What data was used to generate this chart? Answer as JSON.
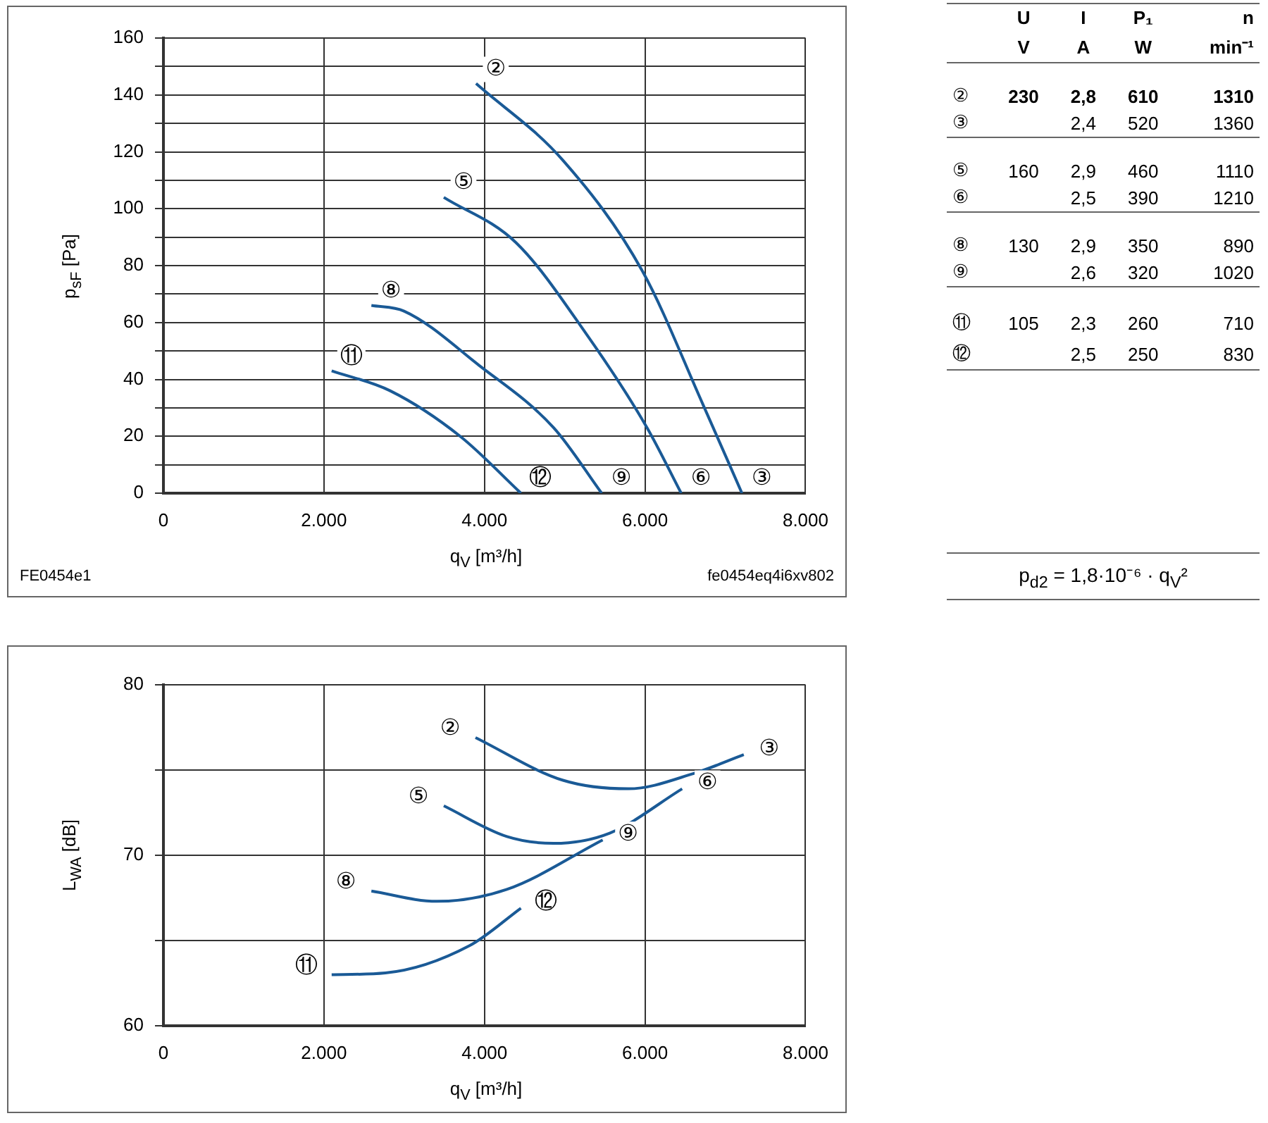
{
  "chart_data": [
    {
      "type": "line",
      "xlabel": "q$_{V}$ [m³/h]",
      "ylabel": "p$_{sF}$ [Pa]",
      "xlim": [
        0,
        8000
      ],
      "ylim": [
        0,
        160
      ],
      "xticks": [
        0,
        {
          "value": 2000,
          "label": "2.000"
        },
        {
          "value": 4000,
          "label": "4.000"
        },
        {
          "value": 6000,
          "label": "6.000"
        },
        {
          "value": 8000,
          "label": "8.000"
        }
      ],
      "yticks": [
        0,
        {
          "value": 10,
          "label": null
        },
        20,
        {
          "value": 30,
          "label": null
        },
        40,
        {
          "value": 50,
          "label": null
        },
        60,
        {
          "value": 70,
          "label": null
        },
        80,
        {
          "value": 90,
          "label": null
        },
        100,
        {
          "value": 110,
          "label": null
        },
        120,
        {
          "value": 130,
          "label": null
        },
        140,
        {
          "value": 150,
          "label": null
        },
        160
      ],
      "grid": true,
      "legend": false,
      "marker": "none",
      "line_style": "solid",
      "series": [
        {
          "color": "#1a5a96",
          "x": [
            3895,
            4978,
            5969,
            6725,
            7208
          ],
          "values": [
            144,
            117,
            78,
            31,
            0
          ]
        },
        {
          "color": "#1a5a96",
          "x": [
            3493,
            4396,
            5268,
            6026,
            6451
          ],
          "values": [
            104,
            88,
            56,
            23,
            0
          ]
        },
        {
          "color": "#1a5a96",
          "x": [
            2591,
            2998,
            3930,
            4862,
            5460
          ],
          "values": [
            66,
            64,
            45,
            23,
            0
          ]
        },
        {
          "color": "#1a5a96",
          "x": [
            2096,
            2824,
            3697,
            4454
          ],
          "values": [
            43,
            36,
            20,
            0
          ]
        }
      ],
      "annotations": [
        {
          "text": "②",
          "x": 3895,
          "y": 144
        },
        {
          "text": "③",
          "x": 7208,
          "y": 0
        },
        {
          "text": "⑤",
          "x": 3493,
          "y": 104
        },
        {
          "text": "⑥",
          "x": 6451,
          "y": 0
        },
        {
          "text": "⑧",
          "x": 2591,
          "y": 66
        },
        {
          "text": "⑨",
          "x": 5460,
          "y": 0
        },
        {
          "text": "⑪",
          "x": 2096,
          "y": 43
        },
        {
          "text": "⑫",
          "x": 4454,
          "y": 0
        },
        "FE0454e1",
        "fe0454eq4i6xv802"
      ]
    },
    {
      "type": "other",
      "cell_labels": [
        [
          null,
          "U",
          "I",
          "P₁",
          "n"
        ],
        [
          null,
          "V",
          "A",
          "W",
          "min⁻¹"
        ],
        [
          "②",
          "230",
          "2,8",
          "610",
          "1310"
        ],
        [
          "③",
          null,
          "2,4",
          "520",
          "1360"
        ],
        [
          "⑤",
          "160",
          "2,9",
          "460",
          "1110"
        ],
        [
          "⑥",
          null,
          "2,5",
          "390",
          "1210"
        ],
        [
          "⑧",
          "130",
          "2,9",
          "350",
          "890"
        ],
        [
          "⑨",
          null,
          "2,6",
          "320",
          "1020"
        ],
        [
          "⑪",
          "105",
          "2,3",
          "260",
          "710"
        ],
        [
          "⑫",
          null,
          "2,5",
          "250",
          "830"
        ]
      ],
      "annotations": [
        "p$_{d2}$ = 1,8·10⁻⁶ · q$_{V}$²"
      ]
    },
    {
      "type": "line",
      "xlabel": "q$_{V}$ [m³/h]",
      "ylabel": "L$_{WA}$ [dB]",
      "xlim": [
        0,
        8000
      ],
      "ylim": [
        60,
        80
      ],
      "xticks": [
        0,
        {
          "value": 2000,
          "label": "2.000"
        },
        {
          "value": 4000,
          "label": "4.000"
        },
        {
          "value": 6000,
          "label": "6.000"
        },
        {
          "value": 8000,
          "label": "8.000"
        }
      ],
      "yticks": [
        60,
        {
          "value": 65,
          "label": null
        },
        70,
        {
          "value": 75,
          "label": null
        },
        80
      ],
      "grid": true,
      "legend": false,
      "marker": "none",
      "line_style": "solid",
      "series": [
        {
          "color": "#1a5a96",
          "x": [
            3888,
            4978,
            5793,
            6607,
            7231
          ],
          "values": [
            76.9,
            74.4,
            73.9,
            74.8,
            75.9
          ]
        },
        {
          "color": "#1a5a96",
          "x": [
            3493,
            4279,
            4862,
            5560,
            6463
          ],
          "values": [
            72.9,
            71.1,
            70.7,
            71.3,
            73.9
          ]
        },
        {
          "color": "#1a5a96",
          "x": [
            2591,
            3406,
            4279,
            5473
          ],
          "values": [
            67.9,
            67.3,
            68.0,
            70.9
          ]
        },
        {
          "color": "#1a5a96",
          "x": [
            2096,
            2765,
            3814,
            4454
          ],
          "values": [
            63.0,
            63.1,
            64.7,
            66.9
          ]
        }
      ],
      "annotations": [
        {
          "text": "②",
          "x": 3888,
          "y": 76.9
        },
        {
          "text": "③",
          "x": 7231,
          "y": 75.9
        },
        {
          "text": "⑤",
          "x": 3493,
          "y": 72.9
        },
        {
          "text": "⑥",
          "x": 6463,
          "y": 73.9
        },
        {
          "text": "⑧",
          "x": 2591,
          "y": 67.9
        },
        {
          "text": "⑨",
          "x": 5473,
          "y": 70.9
        },
        {
          "text": "⑪",
          "x": 2096,
          "y": 63.0
        },
        {
          "text": "⑫",
          "x": 4454,
          "y": 66.9
        }
      ]
    }
  ]
}
